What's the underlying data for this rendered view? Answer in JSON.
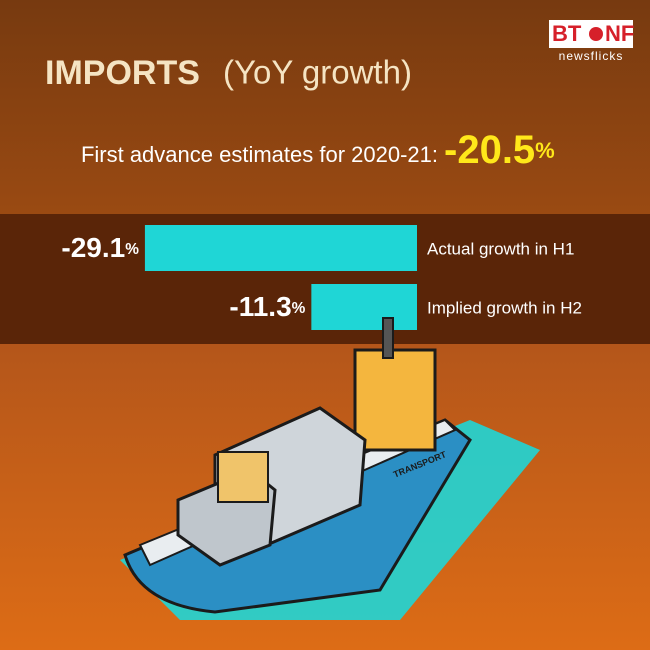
{
  "chart_data": {
    "type": "bar",
    "orientation": "horizontal",
    "title": "IMPORTS",
    "subtitle": "(YoY growth)",
    "annotation": {
      "text": "First advance estimates for 2020-21:",
      "value": -20.5,
      "label": "-20.5%"
    },
    "categories": [
      "Actual growth in H1",
      "Implied growth in H2"
    ],
    "values": [
      -29.1,
      -11.3
    ],
    "value_labels": [
      "-29.1%",
      "-11.3%"
    ],
    "color": "#1fd6d6"
  },
  "logo": {
    "left": "BT",
    "right": "NF",
    "tagline": "newsflicks"
  },
  "illustration": {
    "label": "TRANSPORT"
  }
}
